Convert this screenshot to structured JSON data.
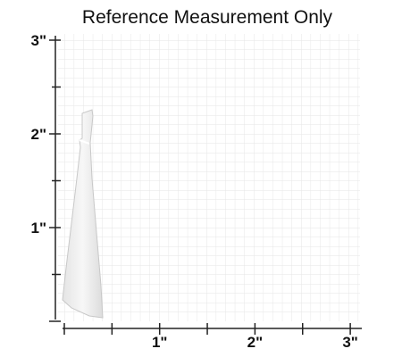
{
  "title": "Reference Measurement Only",
  "y_axis": {
    "labels": [
      "3\"",
      "2\"",
      "1\""
    ]
  },
  "x_axis": {
    "labels": [
      "1\"",
      "2\"",
      "3\""
    ]
  }
}
